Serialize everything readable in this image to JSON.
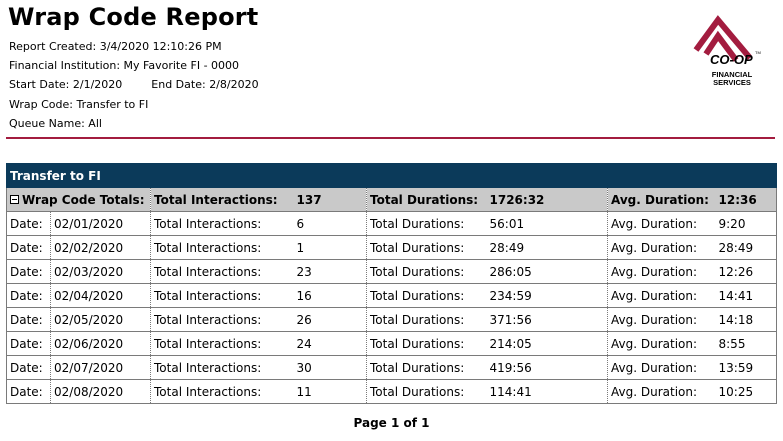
{
  "report": {
    "title": "Wrap Code Report",
    "created_label": "Report Created:",
    "created_value": "3/4/2020 12:10:26 PM",
    "fi_label": "Financial Institution:",
    "fi_value": "My Favorite FI - 0000",
    "start_label": "Start Date:",
    "start_value": "2/1/2020",
    "end_label": "End Date:",
    "end_value": "2/8/2020",
    "wrap_label": "Wrap Code:",
    "wrap_value": "Transfer to FI",
    "queue_label": "Queue Name:",
    "queue_value": "All"
  },
  "logo": {
    "brand": "CO-OP",
    "line1": "FINANCIAL",
    "line2": "SERVICES",
    "tm": "TM",
    "color": "#a31c3f"
  },
  "group": {
    "title": "Transfer to FI",
    "header_color": "#0b3a5a"
  },
  "totals": {
    "label": "Wrap Code Totals:",
    "interactions_label": "Total Interactions:",
    "interactions_value": "137",
    "durations_label": "Total Durations:",
    "durations_value": "1726:32",
    "avg_label": "Avg. Duration:",
    "avg_value": "12:36"
  },
  "rows": [
    {
      "date_label": "Date:",
      "date": "02/01/2020",
      "int_label": "Total Interactions:",
      "interactions": "6",
      "dur_label": "Total Durations:",
      "duration": "56:01",
      "avg_label": "Avg. Duration:",
      "avg": "9:20"
    },
    {
      "date_label": "Date:",
      "date": "02/02/2020",
      "int_label": "Total Interactions:",
      "interactions": "1",
      "dur_label": "Total Durations:",
      "duration": "28:49",
      "avg_label": "Avg. Duration:",
      "avg": "28:49"
    },
    {
      "date_label": "Date:",
      "date": "02/03/2020",
      "int_label": "Total Interactions:",
      "interactions": "23",
      "dur_label": "Total Durations:",
      "duration": "286:05",
      "avg_label": "Avg. Duration:",
      "avg": "12:26"
    },
    {
      "date_label": "Date:",
      "date": "02/04/2020",
      "int_label": "Total Interactions:",
      "interactions": "16",
      "dur_label": "Total Durations:",
      "duration": "234:59",
      "avg_label": "Avg. Duration:",
      "avg": "14:41"
    },
    {
      "date_label": "Date:",
      "date": "02/05/2020",
      "int_label": "Total Interactions:",
      "interactions": "26",
      "dur_label": "Total Durations:",
      "duration": "371:56",
      "avg_label": "Avg. Duration:",
      "avg": "14:18"
    },
    {
      "date_label": "Date:",
      "date": "02/06/2020",
      "int_label": "Total Interactions:",
      "interactions": "24",
      "dur_label": "Total Durations:",
      "duration": "214:05",
      "avg_label": "Avg. Duration:",
      "avg": "8:55"
    },
    {
      "date_label": "Date:",
      "date": "02/07/2020",
      "int_label": "Total Interactions:",
      "interactions": "30",
      "dur_label": "Total Durations:",
      "duration": "419:56",
      "avg_label": "Avg. Duration:",
      "avg": "13:59"
    },
    {
      "date_label": "Date:",
      "date": "02/08/2020",
      "int_label": "Total Interactions:",
      "interactions": "11",
      "dur_label": "Total Durations:",
      "duration": "114:41",
      "avg_label": "Avg. Duration:",
      "avg": "10:25"
    }
  ],
  "footer": {
    "page_text": "Page 1 of 1"
  }
}
